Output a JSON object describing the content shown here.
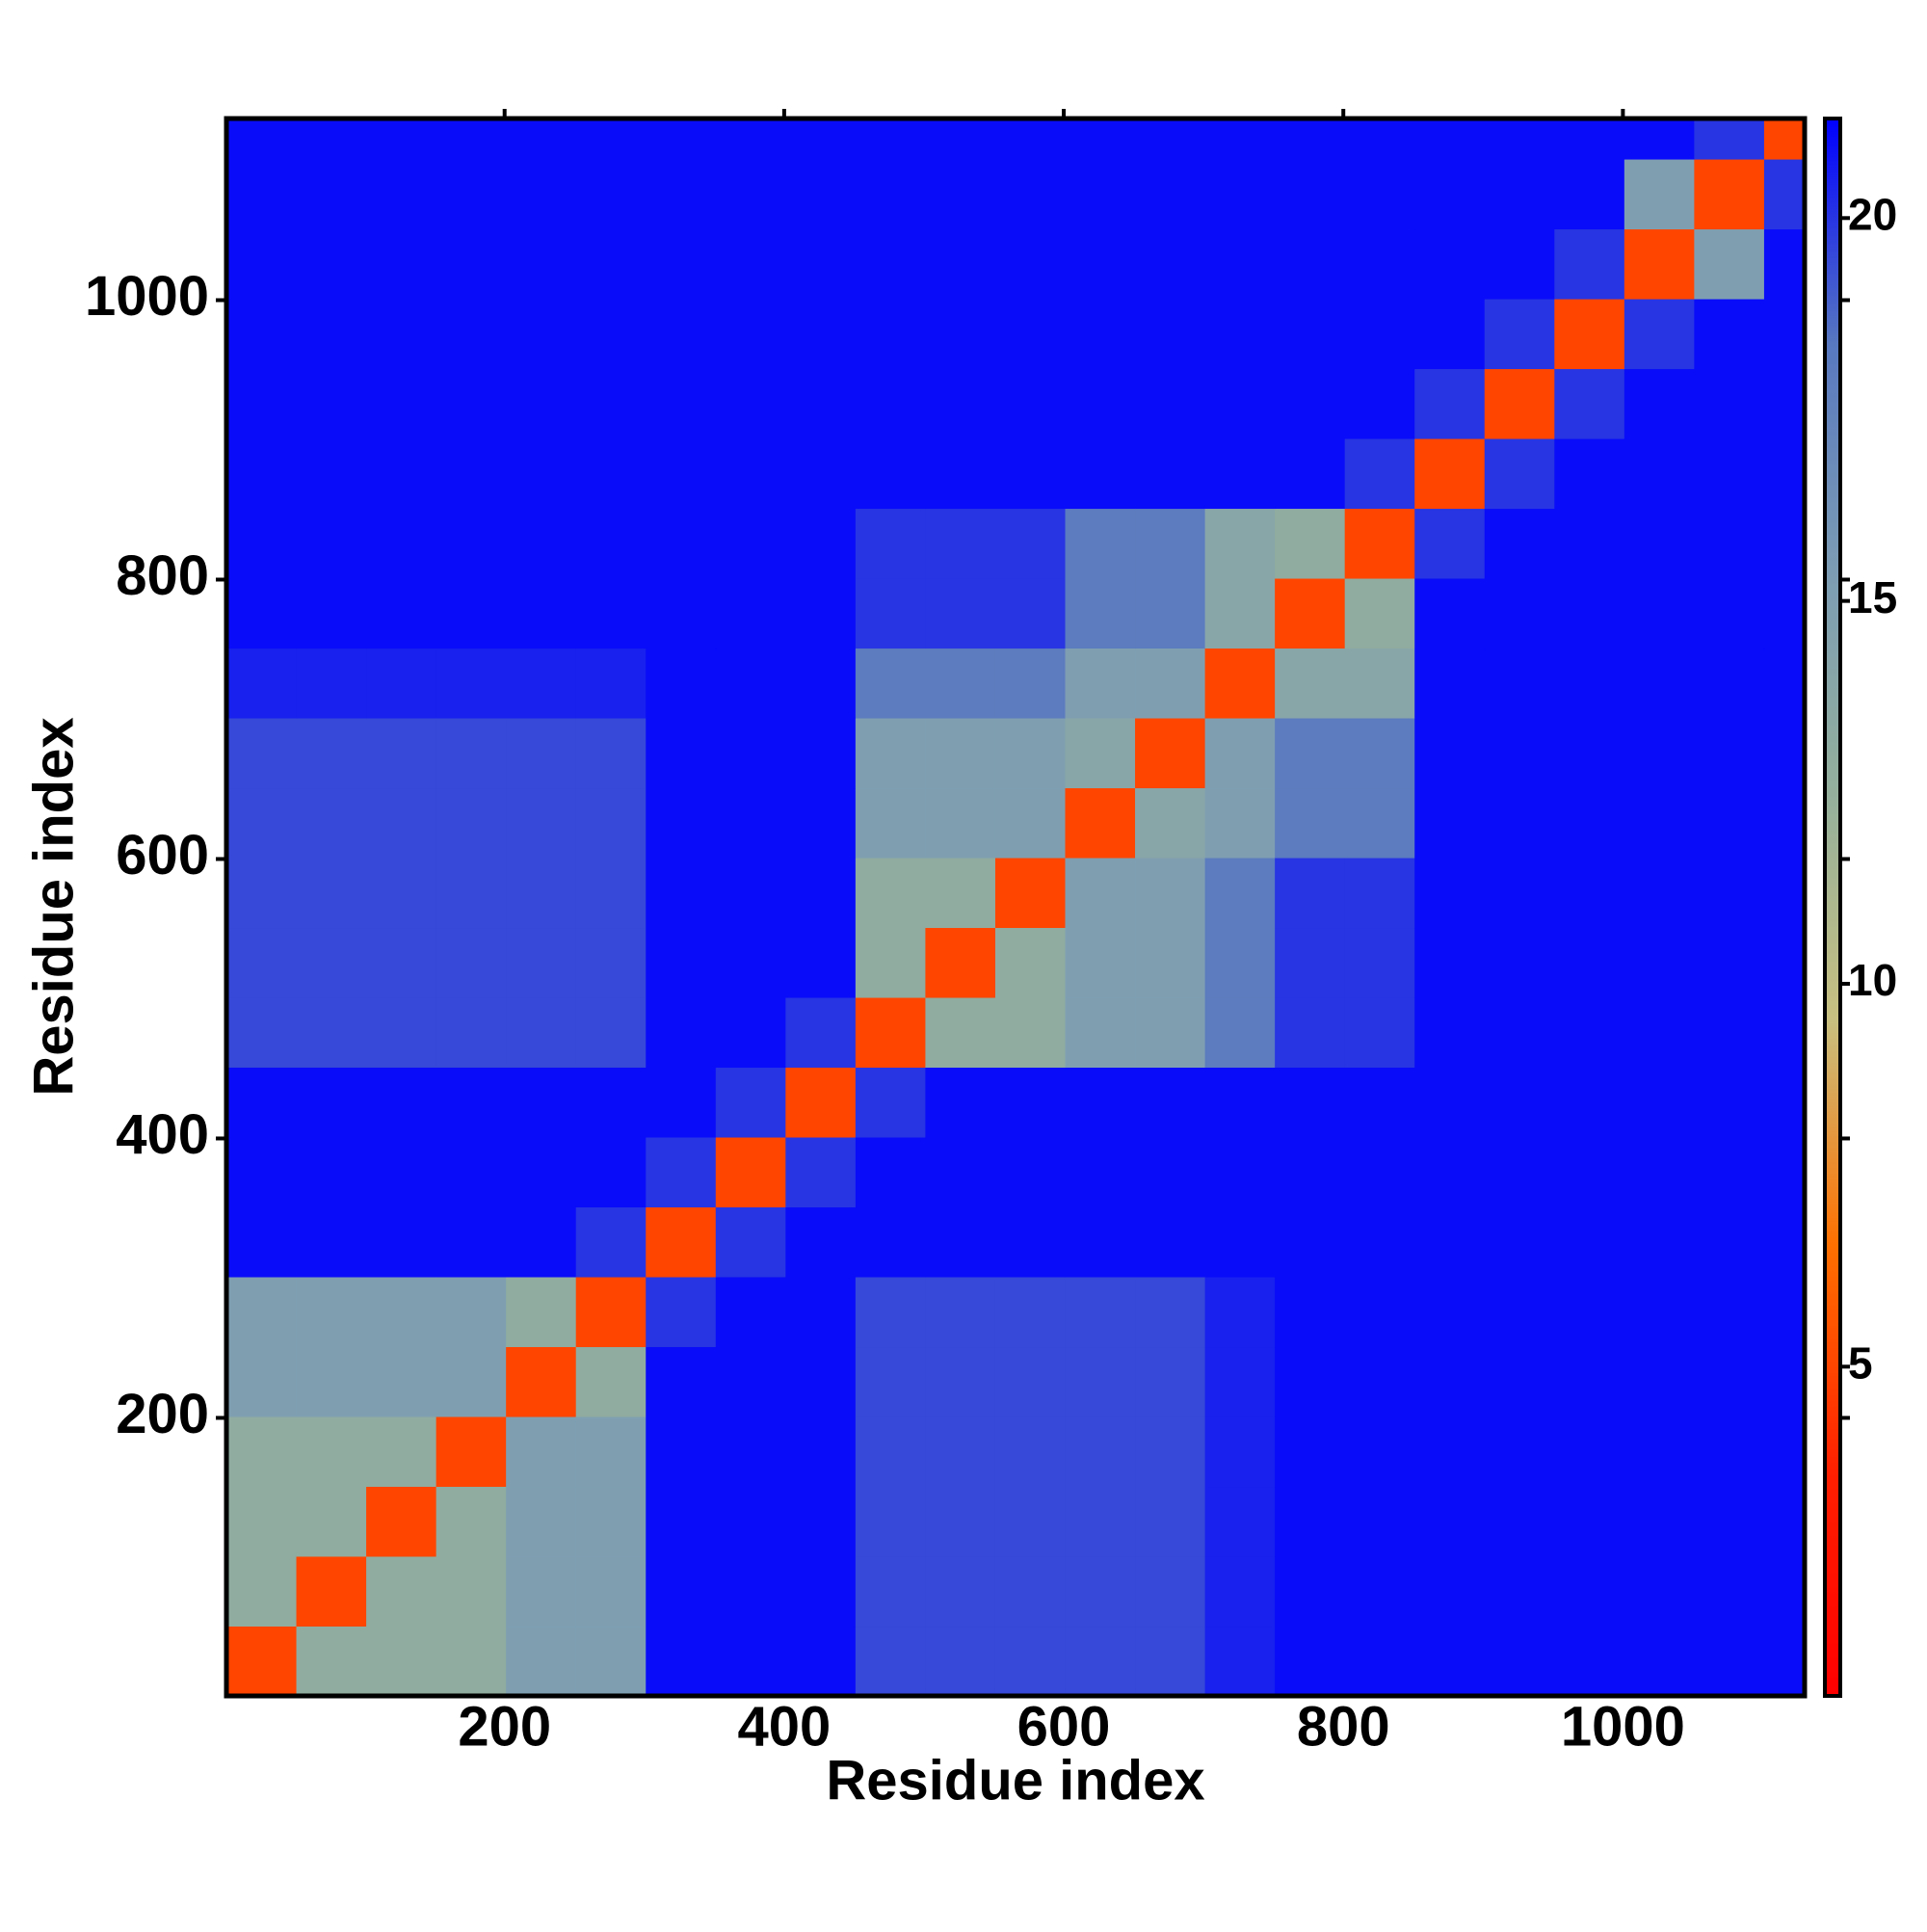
{
  "chart_data": {
    "type": "heatmap",
    "xlabel": "Residue index",
    "ylabel": "Residue index",
    "xlim": [
      1,
      1130
    ],
    "ylim": [
      1,
      1130
    ],
    "xticks": [
      200,
      400,
      600,
      800,
      1000
    ],
    "yticks": [
      200,
      400,
      600,
      800,
      1000
    ],
    "bins": [
      1,
      51,
      101,
      151,
      201,
      251,
      301,
      351,
      401,
      451,
      501,
      551,
      601,
      651,
      701,
      751,
      801,
      851,
      901,
      951,
      1001,
      1051,
      1101,
      1130
    ],
    "values": [
      [
        5,
        13,
        13,
        13,
        15,
        15,
        21,
        21,
        21,
        19.5,
        19.5,
        19.5,
        19.5,
        19.5,
        20.5,
        21,
        21,
        21,
        21,
        21,
        21,
        21,
        21
      ],
      [
        13,
        5,
        13,
        13,
        15,
        15,
        21,
        21,
        21,
        19.5,
        19.5,
        19.5,
        19.5,
        19.5,
        20.5,
        21,
        21,
        21,
        21,
        21,
        21,
        21,
        21
      ],
      [
        13,
        13,
        5,
        13,
        15,
        15,
        21,
        21,
        21,
        19.5,
        19.5,
        19.5,
        19.5,
        19.5,
        20.5,
        21,
        21,
        21,
        21,
        21,
        21,
        21,
        21
      ],
      [
        13,
        13,
        13,
        5,
        15,
        15,
        21,
        21,
        21,
        19.5,
        19.5,
        19.5,
        19.5,
        19.5,
        20.5,
        21,
        21,
        21,
        21,
        21,
        21,
        21,
        21
      ],
      [
        15,
        15,
        15,
        15,
        5,
        13,
        21,
        21,
        21,
        19.5,
        19.5,
        19.5,
        19.5,
        19.5,
        20.5,
        21,
        21,
        21,
        21,
        21,
        21,
        21,
        21
      ],
      [
        15,
        15,
        15,
        15,
        13,
        5,
        20,
        21,
        21,
        19.5,
        19.5,
        19.5,
        19.5,
        19.5,
        20.5,
        21,
        21,
        21,
        21,
        21,
        21,
        21,
        21
      ],
      [
        21,
        21,
        21,
        21,
        21,
        20,
        5,
        20,
        21,
        21,
        21,
        21,
        21,
        21,
        21,
        21,
        21,
        21,
        21,
        21,
        21,
        21,
        21
      ],
      [
        21,
        21,
        21,
        21,
        21,
        21,
        20,
        5,
        20,
        21,
        21,
        21,
        21,
        21,
        21,
        21,
        21,
        21,
        21,
        21,
        21,
        21,
        21
      ],
      [
        21,
        21,
        21,
        21,
        21,
        21,
        21,
        20,
        5,
        20,
        21,
        21,
        21,
        21,
        21,
        21,
        21,
        21,
        21,
        21,
        21,
        21,
        21
      ],
      [
        19.5,
        19.5,
        19.5,
        19.5,
        19.5,
        19.5,
        21,
        21,
        20,
        5,
        13,
        13,
        15,
        15,
        18,
        20,
        20,
        21,
        21,
        21,
        21,
        21,
        21
      ],
      [
        19.5,
        19.5,
        19.5,
        19.5,
        19.5,
        19.5,
        21,
        21,
        21,
        13,
        5,
        13,
        15,
        15,
        18,
        20,
        20,
        21,
        21,
        21,
        21,
        21,
        21
      ],
      [
        19.5,
        19.5,
        19.5,
        19.5,
        19.5,
        19.5,
        21,
        21,
        21,
        13,
        13,
        5,
        15,
        15,
        18,
        20,
        20,
        21,
        21,
        21,
        21,
        21,
        21
      ],
      [
        19.5,
        19.5,
        19.5,
        19.5,
        19.5,
        19.5,
        21,
        21,
        21,
        15,
        15,
        15,
        5,
        14,
        15,
        18,
        18,
        21,
        21,
        21,
        21,
        21,
        21
      ],
      [
        19.5,
        19.5,
        19.5,
        19.5,
        19.5,
        19.5,
        21,
        21,
        21,
        15,
        15,
        15,
        14,
        5,
        15,
        18,
        18,
        21,
        21,
        21,
        21,
        21,
        21
      ],
      [
        20.5,
        20.5,
        20.5,
        20.5,
        20.5,
        20.5,
        21,
        21,
        21,
        18,
        18,
        18,
        15,
        15,
        5,
        14,
        14,
        21,
        21,
        21,
        21,
        21,
        21
      ],
      [
        21,
        21,
        21,
        21,
        21,
        21,
        21,
        21,
        21,
        20,
        20,
        20,
        18,
        18,
        14,
        5,
        13,
        21,
        21,
        21,
        21,
        21,
        21
      ],
      [
        21,
        21,
        21,
        21,
        21,
        21,
        21,
        21,
        21,
        20,
        20,
        20,
        18,
        18,
        14,
        13,
        5,
        20,
        21,
        21,
        21,
        21,
        21
      ],
      [
        21,
        21,
        21,
        21,
        21,
        21,
        21,
        21,
        21,
        21,
        21,
        21,
        21,
        21,
        21,
        21,
        20,
        5,
        20,
        21,
        21,
        21,
        21
      ],
      [
        21,
        21,
        21,
        21,
        21,
        21,
        21,
        21,
        21,
        21,
        21,
        21,
        21,
        21,
        21,
        21,
        21,
        20,
        5,
        20,
        21,
        21,
        21
      ],
      [
        21,
        21,
        21,
        21,
        21,
        21,
        21,
        21,
        21,
        21,
        21,
        21,
        21,
        21,
        21,
        21,
        21,
        21,
        20,
        5,
        20,
        21,
        21
      ],
      [
        21,
        21,
        21,
        21,
        21,
        21,
        21,
        21,
        21,
        21,
        21,
        21,
        21,
        21,
        21,
        21,
        21,
        21,
        21,
        20,
        5,
        15,
        21
      ],
      [
        21,
        21,
        21,
        21,
        21,
        21,
        21,
        21,
        21,
        21,
        21,
        21,
        21,
        21,
        21,
        21,
        21,
        21,
        21,
        21,
        15,
        5,
        20
      ],
      [
        21,
        21,
        21,
        21,
        21,
        21,
        21,
        21,
        21,
        21,
        21,
        21,
        21,
        21,
        21,
        21,
        21,
        21,
        21,
        21,
        21,
        20,
        5
      ]
    ],
    "colorbar": {
      "lim": [
        0.7,
        21.3
      ],
      "ticks": [
        5,
        10,
        15,
        20
      ],
      "colors": [
        "#ff0000",
        "#ff2000",
        "#ff7000",
        "#c8c080",
        "#94b09c",
        "#7c9cb4",
        "#5878c0",
        "#0000ff"
      ]
    }
  }
}
